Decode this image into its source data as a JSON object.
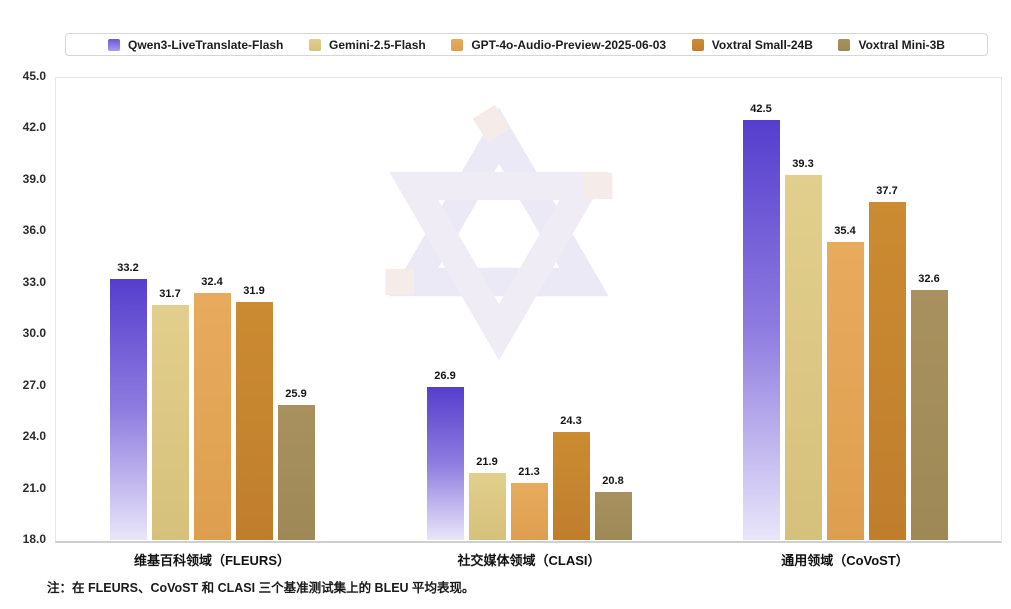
{
  "legend": {
    "position": "top",
    "items": [
      {
        "label": "Qwen3-LiveTranslate-Flash"
      },
      {
        "label": "Gemini-2.5-Flash"
      },
      {
        "label": "GPT-4o-Audio-Preview-2025-06-03"
      },
      {
        "label": "Voxtral Small-24B"
      },
      {
        "label": "Voxtral Mini-3B"
      }
    ]
  },
  "chart_data": {
    "type": "bar",
    "title": "",
    "categories": [
      "维基百科领域（FLEURS）",
      "社交媒体领域（CLASI）",
      "通用领域（CoVoST）"
    ],
    "series": [
      {
        "name": "Qwen3-LiveTranslate-Flash",
        "values": [
          33.2,
          26.9,
          42.5
        ],
        "gradient": [
          "#553ecd",
          "#8f7ce0",
          "#e9e6fa"
        ],
        "swatch": [
          "#6a57d5",
          "#a99cee"
        ]
      },
      {
        "name": "Gemini-2.5-Flash",
        "values": [
          31.7,
          21.9,
          39.3
        ],
        "gradient": [
          "#e3cf8d",
          "#d5c17b"
        ],
        "swatch": [
          "#e3cf8d",
          "#d5c17b"
        ]
      },
      {
        "name": "GPT-4o-Audio-Preview-2025-06-03",
        "values": [
          32.4,
          21.3,
          35.4
        ],
        "gradient": [
          "#e8ab5e",
          "#dd9f4f"
        ],
        "swatch": [
          "#e8ab5e",
          "#dd9f4f"
        ]
      },
      {
        "name": "Voxtral Small-24B",
        "values": [
          31.9,
          24.3,
          37.7
        ],
        "gradient": [
          "#cb8b31",
          "#c07e2d"
        ],
        "swatch": [
          "#cb8b31",
          "#c07e2d"
        ]
      },
      {
        "name": "Voxtral Mini-3B",
        "values": [
          25.9,
          20.8,
          32.6
        ],
        "gradient": [
          "#a8915e",
          "#9e8956"
        ],
        "swatch": [
          "#a8915e",
          "#9e8956"
        ]
      }
    ],
    "ylim": [
      18.0,
      45.0
    ],
    "ytick_step": 3.0,
    "ytick_labels": [
      "45.0",
      "42.0",
      "39.0",
      "36.0",
      "33.0",
      "30.0",
      "27.0",
      "24.0",
      "21.0",
      "18.0"
    ],
    "ylabel": "",
    "xlabel": "",
    "grid": false,
    "legend_position": "top",
    "value_labels": true,
    "watermark": "qwen-logo"
  },
  "note": "注：在 FLEURS、CoVoST 和 CLASI 三个基准测试集上的 BLEU 平均表现。",
  "colors": {
    "accent_purple": "#553ecd",
    "tan": "#d9c47e",
    "orange": "#e2a455",
    "brown_orange": "#c5852f",
    "olive": "#a38d5b",
    "axis_line": "#cfcfcf",
    "plot_border": "#e4e4e4",
    "watermark_tint": "#ece9f7",
    "watermark_warm_tint": "#f5ece9"
  }
}
